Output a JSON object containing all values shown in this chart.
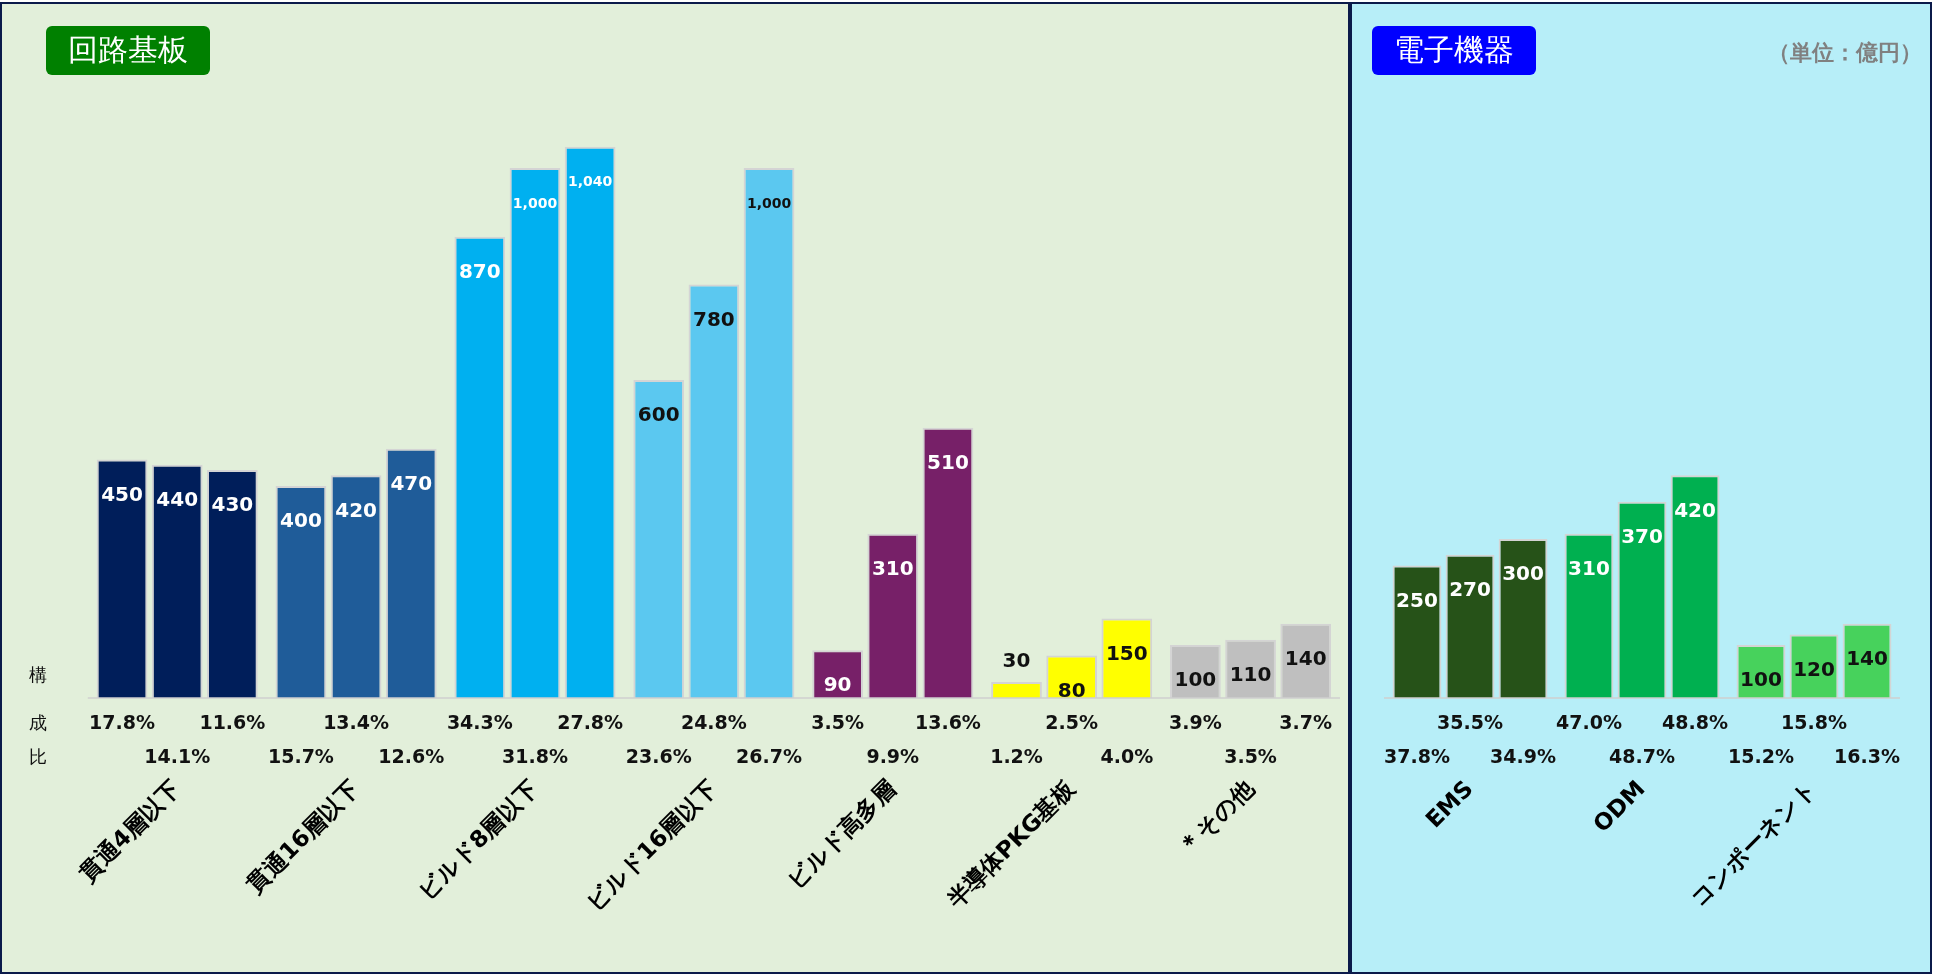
{
  "chart_data": [
    {
      "type": "bar",
      "title": "回路基板",
      "ylabel": "構成比",
      "categories": [
        "貫通4層以下",
        "貫通16層以下",
        "ビルド8層以下",
        "ビルド16層以下",
        "ビルド高多層",
        "半導体PKG基板",
        "＊その他"
      ],
      "series": [
        {
          "colors": [
            "#001e5a",
            "#1f5c99",
            "#00b0f0",
            "#5bc8f0",
            "#772068",
            "#ffff00",
            "#bfbfbf"
          ],
          "values": [
            450,
            400,
            870,
            600,
            90,
            30,
            100
          ],
          "value_labels": [
            "450",
            "400",
            "870",
            "600",
            "90",
            "30",
            "100"
          ]
        },
        {
          "colors": [
            "#001e5a",
            "#1f5c99",
            "#00b0f0",
            "#5bc8f0",
            "#772068",
            "#ffff00",
            "#bfbfbf"
          ],
          "values": [
            440,
            420,
            1000,
            780,
            310,
            80,
            110
          ],
          "value_labels": [
            "440",
            "420",
            "1,000",
            "780",
            "310",
            "80",
            "110"
          ]
        },
        {
          "colors": [
            "#001e5a",
            "#1f5c99",
            "#00b0f0",
            "#5bc8f0",
            "#772068",
            "#ffff00",
            "#bfbfbf"
          ],
          "values": [
            430,
            470,
            1040,
            1000,
            510,
            150,
            140
          ],
          "value_labels": [
            "430",
            "470",
            "1,040",
            "1,000",
            "510",
            "150",
            "140"
          ]
        }
      ],
      "tick_labels": "x",
      "grid": false,
      "legend": false,
      "annotations": [
        "17.8%",
        "14.1%",
        "11.6%",
        "15.7%",
        "13.4%",
        "12.6%",
        "34.3%",
        "31.8%",
        "27.8%",
        "23.6%",
        "24.8%",
        "26.7%",
        "3.5%",
        "9.9%",
        "13.6%",
        "1.2%",
        "2.5%",
        "4.0%",
        "3.9%",
        "3.5%",
        "3.7%"
      ]
    },
    {
      "type": "bar",
      "title": "電子機器",
      "subtitle": "（単位：億円）",
      "categories": [
        "EMS",
        "ODM",
        "コンポーネント"
      ],
      "series": [
        {
          "colors": [
            "#265218",
            "#00b050",
            "#47d25c"
          ],
          "values": [
            250,
            310,
            100
          ],
          "value_labels": [
            "250",
            "310",
            "100"
          ]
        },
        {
          "colors": [
            "#265218",
            "#00b050",
            "#47d25c"
          ],
          "values": [
            270,
            370,
            120
          ],
          "value_labels": [
            "270",
            "370",
            "120"
          ]
        },
        {
          "colors": [
            "#265218",
            "#00b050",
            "#47d25c"
          ],
          "values": [
            300,
            420,
            140
          ],
          "value_labels": [
            "300",
            "420",
            "140"
          ]
        }
      ],
      "tick_labels": "x",
      "grid": false,
      "legend": false,
      "annotations": [
        "37.8%",
        "35.5%",
        "34.9%",
        "47.0%",
        "48.7%",
        "48.8%",
        "15.2%",
        "15.8%",
        "16.3%"
      ]
    }
  ]
}
